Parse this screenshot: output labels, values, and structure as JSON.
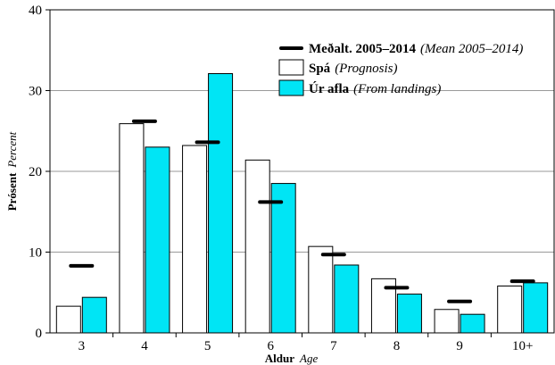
{
  "chart_data": {
    "type": "bar",
    "categories": [
      "3",
      "4",
      "5",
      "6",
      "7",
      "8",
      "9",
      "10+"
    ],
    "series": [
      {
        "name": "Spá",
        "name_en": "(Prognosis)",
        "kind": "bar",
        "values": [
          3.3,
          25.9,
          23.2,
          21.4,
          10.7,
          6.7,
          2.9,
          5.8
        ],
        "color": "#ffffff"
      },
      {
        "name": "Úr afla",
        "name_en": "(From landings)",
        "kind": "bar",
        "values": [
          4.4,
          23.0,
          32.1,
          18.5,
          8.4,
          4.8,
          2.3,
          6.2
        ],
        "color": "#00e5f5"
      },
      {
        "name": "Meðalt. 2005–2014",
        "name_en": "(Mean 2005–2014)",
        "kind": "marker",
        "values": [
          8.3,
          26.2,
          23.6,
          16.2,
          9.7,
          5.6,
          3.9,
          6.4
        ],
        "color": "#000000"
      }
    ],
    "xlabel": "Aldur",
    "xlabel_en": "Age",
    "ylabel": "Prósent",
    "ylabel_en": "Percent",
    "yticks": [
      "0",
      "10",
      "20",
      "30",
      "40"
    ],
    "ylim": [
      0,
      40
    ],
    "grid": true,
    "legend_position": "top-right"
  }
}
